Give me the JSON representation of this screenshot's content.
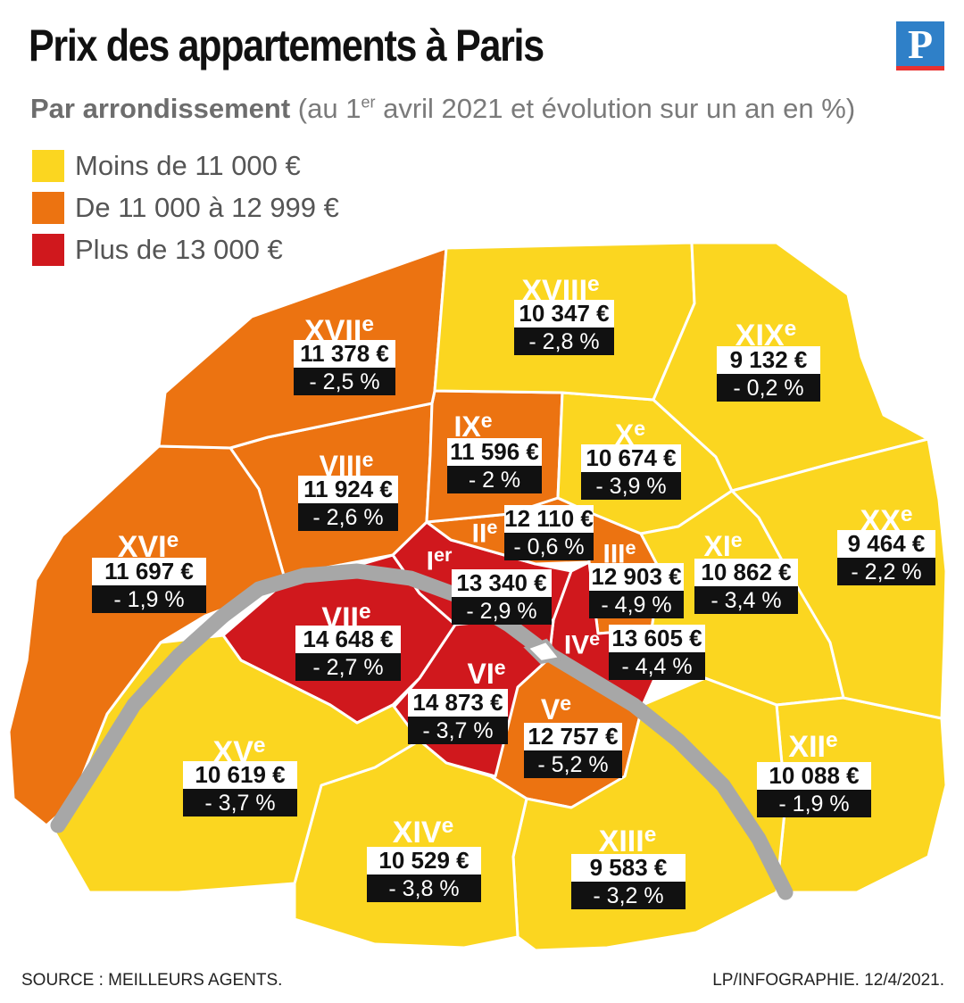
{
  "header": {
    "title": "Prix des appartements à Paris",
    "subtitle_bold": "Par arrondissement",
    "subtitle_pre": "(au 1",
    "subtitle_sup": "er",
    "subtitle_post": " avril 2021 et évolution sur un an en %)",
    "logo_letter": "P"
  },
  "legend": [
    {
      "label": "Moins de 11 000 €",
      "color": "#fbd620"
    },
    {
      "label": "De 11 000 à 12 999 €",
      "color": "#ec7311"
    },
    {
      "label": "Plus de 13 000 €",
      "color": "#d0181d"
    }
  ],
  "colors": {
    "low": "#fbd620",
    "mid": "#ec7311",
    "high": "#d0181d",
    "seine": "#a7a7a7",
    "border": "#ffffff"
  },
  "arrondissements": [
    {
      "id": "I",
      "roman": "I",
      "suffix": "er",
      "price": "13 340 €",
      "evolution": "- 2,9 %",
      "tier": "high"
    },
    {
      "id": "II",
      "roman": "II",
      "suffix": "e",
      "price": "12 110 €",
      "evolution": "- 0,6 %",
      "tier": "mid"
    },
    {
      "id": "III",
      "roman": "III",
      "suffix": "e",
      "price": "12 903 €",
      "evolution": "- 4,9 %",
      "tier": "mid"
    },
    {
      "id": "IV",
      "roman": "IV",
      "suffix": "e",
      "price": "13 605 €",
      "evolution": "- 4,4 %",
      "tier": "high"
    },
    {
      "id": "V",
      "roman": "V",
      "suffix": "e",
      "price": "12 757 €",
      "evolution": "- 5,2 %",
      "tier": "mid"
    },
    {
      "id": "VI",
      "roman": "VI",
      "suffix": "e",
      "price": "14 873 €",
      "evolution": "- 3,7 %",
      "tier": "high"
    },
    {
      "id": "VII",
      "roman": "VII",
      "suffix": "e",
      "price": "14 648 €",
      "evolution": "- 2,7 %",
      "tier": "high"
    },
    {
      "id": "VIII",
      "roman": "VIII",
      "suffix": "e",
      "price": "11 924 €",
      "evolution": "- 2,6 %",
      "tier": "mid"
    },
    {
      "id": "IX",
      "roman": "IX",
      "suffix": "e",
      "price": "11 596 €",
      "evolution": "- 2 %",
      "tier": "mid"
    },
    {
      "id": "X",
      "roman": "X",
      "suffix": "e",
      "price": "10 674 €",
      "evolution": "- 3,9 %",
      "tier": "low"
    },
    {
      "id": "XI",
      "roman": "XI",
      "suffix": "e",
      "price": "10 862 €",
      "evolution": "- 3,4 %",
      "tier": "low"
    },
    {
      "id": "XII",
      "roman": "XII",
      "suffix": "e",
      "price": "10 088 €",
      "evolution": "- 1,9 %",
      "tier": "low"
    },
    {
      "id": "XIII",
      "roman": "XIII",
      "suffix": "e",
      "price": "9 583  €",
      "evolution": "- 3,2 %",
      "tier": "low"
    },
    {
      "id": "XIV",
      "roman": "XIV",
      "suffix": "e",
      "price": "10 529 €",
      "evolution": "- 3,8 %",
      "tier": "low"
    },
    {
      "id": "XV",
      "roman": "XV",
      "suffix": "e",
      "price": "10 619 €",
      "evolution": "- 3,7 %",
      "tier": "low"
    },
    {
      "id": "XVI",
      "roman": "XVI",
      "suffix": "e",
      "price": "11 697 €",
      "evolution": "- 1,9 %",
      "tier": "mid"
    },
    {
      "id": "XVII",
      "roman": "XVII",
      "suffix": "e",
      "price": "11 378 €",
      "evolution": "- 2,5 %",
      "tier": "mid"
    },
    {
      "id": "XVIII",
      "roman": "XVIII",
      "suffix": "e",
      "price": "10 347 €",
      "evolution": "- 2,8 %",
      "tier": "low"
    },
    {
      "id": "XIX",
      "roman": "XIX",
      "suffix": "e",
      "price": "9 132 €",
      "evolution": "- 0,2 %",
      "tier": "low"
    },
    {
      "id": "XX",
      "roman": "XX",
      "suffix": "e",
      "price": "9 464 €",
      "evolution": "- 2,2 %",
      "tier": "low"
    }
  ],
  "footer": {
    "source": "SOURCE : MEILLEURS AGENTS.",
    "credit": "LP/INFOGRAPHIE.  12/4/2021."
  }
}
